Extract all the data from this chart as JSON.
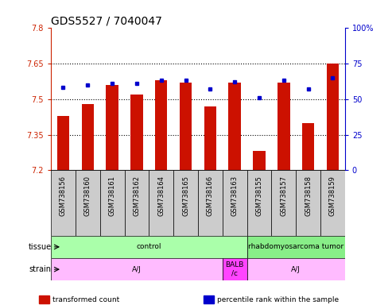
{
  "title": "GDS5527 / 7040047",
  "samples": [
    "GSM738156",
    "GSM738160",
    "GSM738161",
    "GSM738162",
    "GSM738164",
    "GSM738165",
    "GSM738166",
    "GSM738163",
    "GSM738155",
    "GSM738157",
    "GSM738158",
    "GSM738159"
  ],
  "transformed_count": [
    7.43,
    7.48,
    7.56,
    7.52,
    7.58,
    7.57,
    7.47,
    7.57,
    7.28,
    7.57,
    7.4,
    7.65
  ],
  "percentile_rank": [
    58,
    60,
    61,
    61,
    63,
    63,
    57,
    62,
    51,
    63,
    57,
    65
  ],
  "y_min": 7.2,
  "y_max": 7.8,
  "y_ticks": [
    7.2,
    7.35,
    7.5,
    7.65,
    7.8
  ],
  "y2_ticks": [
    0,
    25,
    50,
    75,
    100
  ],
  "y2_tick_labels": [
    "0",
    "25",
    "50",
    "75",
    "100%"
  ],
  "bar_color": "#cc1100",
  "dot_color": "#0000cc",
  "background_color": "#ffffff",
  "tissue_row": [
    {
      "label": "control",
      "start": 0,
      "end": 8,
      "color": "#aaffaa"
    },
    {
      "label": "rhabdomyosarcoma tumor",
      "start": 8,
      "end": 12,
      "color": "#88ee88"
    }
  ],
  "strain_row": [
    {
      "label": "A/J",
      "start": 0,
      "end": 7,
      "color": "#ffbbff"
    },
    {
      "label": "BALB\n/c",
      "start": 7,
      "end": 8,
      "color": "#ff44ff"
    },
    {
      "label": "A/J",
      "start": 8,
      "end": 12,
      "color": "#ffbbff"
    }
  ],
  "legend_items": [
    {
      "color": "#cc1100",
      "label": "transformed count"
    },
    {
      "color": "#0000cc",
      "label": "percentile rank within the sample"
    }
  ],
  "dotted_lines": [
    7.35,
    7.5,
    7.65
  ],
  "title_fontsize": 10,
  "axis_label_color_left": "#cc2200",
  "axis_label_color_right": "#0000cc",
  "tick_bg_color": "#cccccc"
}
